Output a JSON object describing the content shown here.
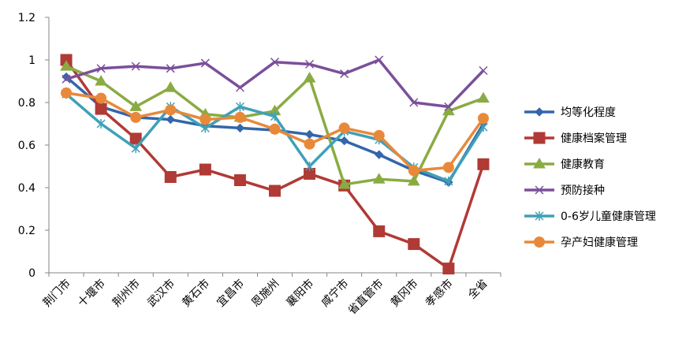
{
  "chart_data": {
    "type": "line",
    "title": "",
    "xlabel": "",
    "ylabel": "",
    "ylim": [
      0,
      1.2
    ],
    "yticks": [
      "0",
      "0.2",
      "0.4",
      "0.6",
      "0.8",
      "1",
      "1.2"
    ],
    "ytick_values": [
      0,
      0.2,
      0.4,
      0.6,
      0.8,
      1.0,
      1.2
    ],
    "grid": false,
    "legend_position": "right",
    "categories": [
      "荆门市",
      "十堰市",
      "荆州市",
      "武汉市",
      "黄石市",
      "宜昌市",
      "恩施州",
      "襄阳市",
      "咸宁市",
      "省直管市",
      "黄冈市",
      "孝感市",
      "全省"
    ],
    "series": [
      {
        "name": "均等化程度",
        "color": "#3366aa",
        "marker": "diamond",
        "values": [
          0.92,
          0.78,
          0.73,
          0.72,
          0.69,
          0.68,
          0.67,
          0.65,
          0.62,
          0.555,
          0.48,
          0.425,
          0.7
        ]
      },
      {
        "name": "健康档案管理",
        "color": "#b03a35",
        "marker": "square",
        "values": [
          1.0,
          0.77,
          0.63,
          0.45,
          0.485,
          0.435,
          0.385,
          0.465,
          0.41,
          0.195,
          0.135,
          0.02,
          0.51
        ]
      },
      {
        "name": "健康教育",
        "color": "#8aab43",
        "marker": "triangle",
        "values": [
          0.97,
          0.9,
          0.78,
          0.87,
          0.745,
          0.73,
          0.76,
          0.915,
          0.415,
          0.44,
          0.43,
          0.76,
          0.82
        ]
      },
      {
        "name": "预防接种",
        "color": "#7b4f9a",
        "marker": "x",
        "values": [
          0.91,
          0.96,
          0.97,
          0.96,
          0.985,
          0.87,
          0.99,
          0.98,
          0.935,
          1.0,
          0.8,
          0.78,
          0.95
        ]
      },
      {
        "name": "0-6岁儿童健康管理",
        "color": "#3fa0b8",
        "marker": "star",
        "values": [
          0.84,
          0.7,
          0.585,
          0.78,
          0.68,
          0.78,
          0.735,
          0.5,
          0.665,
          0.625,
          0.495,
          0.43,
          0.685
        ]
      },
      {
        "name": "孕产妇健康管理",
        "color": "#e8893a",
        "marker": "circle",
        "values": [
          0.845,
          0.82,
          0.73,
          0.765,
          0.72,
          0.73,
          0.675,
          0.605,
          0.68,
          0.645,
          0.48,
          0.495,
          0.725
        ]
      }
    ]
  }
}
